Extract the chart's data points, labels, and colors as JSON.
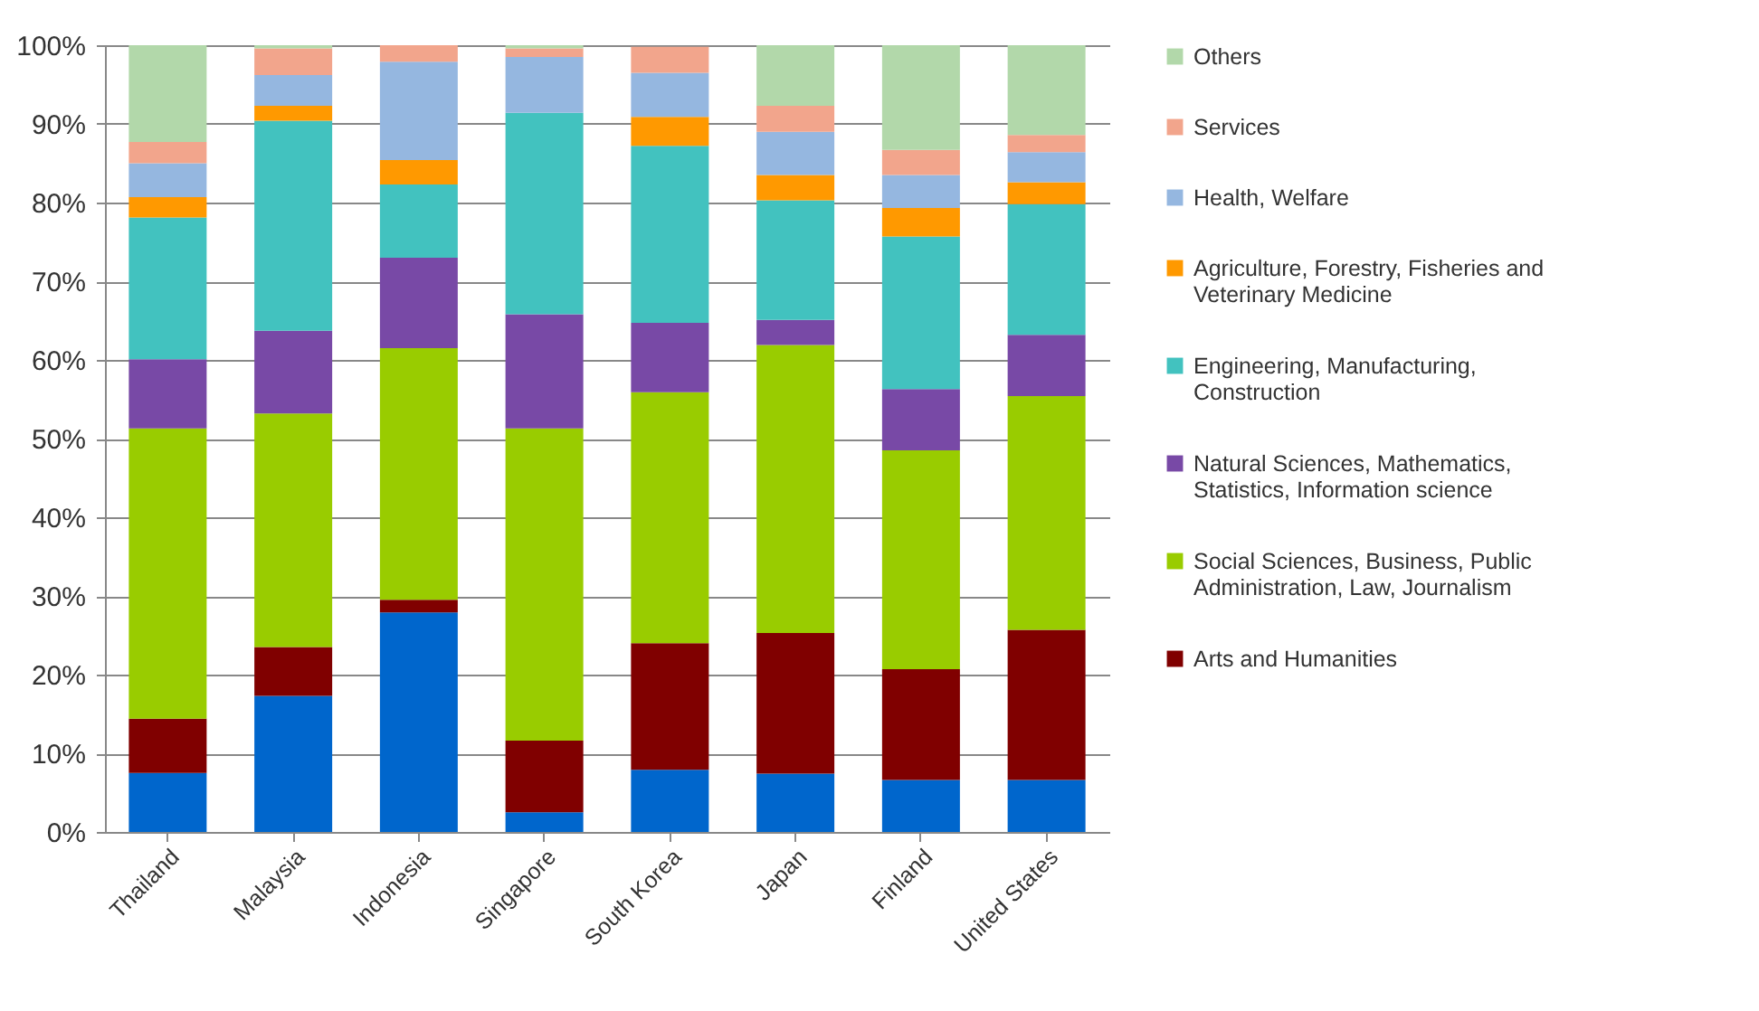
{
  "chart_data": {
    "type": "bar",
    "stacked": true,
    "categories": [
      "Thailand",
      "Malaysia",
      "Indonesia",
      "Singapore",
      "South Korea",
      "Japan",
      "Finland",
      "United States"
    ],
    "series": [
      {
        "color": "#0066cc",
        "values": [
          7.5,
          17.3,
          27.9,
          2.5,
          7.9,
          7.4,
          6.6,
          6.6
        ]
      },
      {
        "name": "Arts and Humanities",
        "color": "#800000",
        "values": [
          6.9,
          6.2,
          1.6,
          9.1,
          16.1,
          17.9,
          14.1,
          19.1
        ]
      },
      {
        "name": "Social Sciences, Business, Public Administration, Law, Journalism",
        "color": "#99cc00",
        "values": [
          36.9,
          29.7,
          32.0,
          39.7,
          31.9,
          36.6,
          27.8,
          29.7
        ]
      },
      {
        "name": "Natural Sciences, Mathematics, Statistics, Information science",
        "color": "#7849a6",
        "values": [
          8.8,
          10.5,
          11.5,
          14.5,
          8.8,
          3.2,
          7.8,
          7.8
        ]
      },
      {
        "name": "Engineering, Manufacturing, Construction",
        "color": "#42c2bf",
        "values": [
          18.0,
          26.7,
          9.3,
          25.6,
          22.5,
          15.2,
          19.4,
          16.6
        ]
      },
      {
        "name": "Agriculture, Forestry, Fisheries and Veterinary Medicine",
        "color": "#ff9900",
        "values": [
          2.6,
          1.9,
          3.1,
          0,
          3.7,
          3.2,
          3.6,
          2.8
        ]
      },
      {
        "name": "Health, Welfare",
        "color": "#95b7e0",
        "values": [
          4.3,
          3.9,
          12.5,
          7.1,
          5.6,
          5.5,
          4.2,
          3.8
        ]
      },
      {
        "name": "Services",
        "color": "#f2a58c",
        "values": [
          2.7,
          3.4,
          2.1,
          1.1,
          3.3,
          3.3,
          3.2,
          2.2
        ]
      },
      {
        "name": "Others",
        "color": "#b2d8aa",
        "values": [
          12.3,
          0.4,
          0,
          0.4,
          0,
          7.7,
          13.3,
          11.4
        ]
      }
    ],
    "ylim": [
      0,
      100
    ],
    "yticks": [
      {
        "value": 0,
        "label": "0%"
      },
      {
        "value": 10,
        "label": "10%"
      },
      {
        "value": 20,
        "label": "20%"
      },
      {
        "value": 30,
        "label": "30%"
      },
      {
        "value": 40,
        "label": "40%"
      },
      {
        "value": 50,
        "label": "50%"
      },
      {
        "value": 60,
        "label": "60%"
      },
      {
        "value": 70,
        "label": "70%"
      },
      {
        "value": 80,
        "label": "80%"
      },
      {
        "value": 90,
        "label": "90%"
      },
      {
        "value": 100,
        "label": "100%"
      }
    ],
    "grid": "y",
    "legend": "right"
  }
}
